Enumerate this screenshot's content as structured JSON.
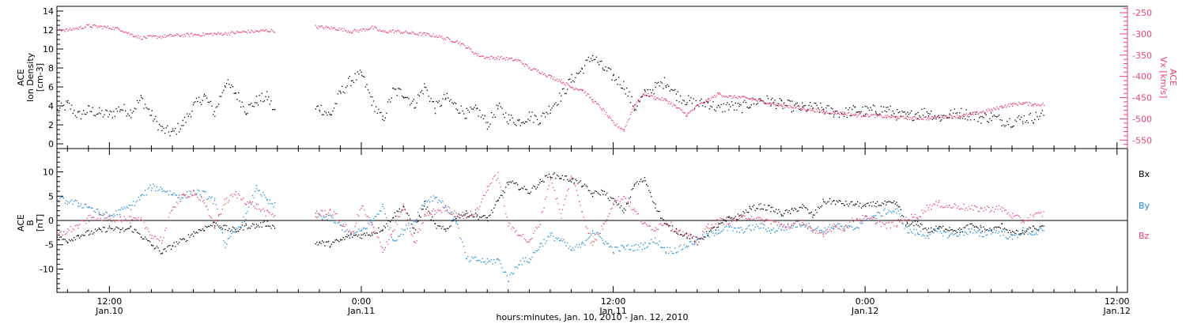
{
  "colors": {
    "axes": "#000000",
    "density": "#000000",
    "speed": "#e8466e",
    "bx": "#000000",
    "by": "#1f88d8",
    "bz": "#e8466e"
  },
  "chart_data": [
    {
      "type": "scatter",
      "panel": "top",
      "ylabel": "ACE Ion Density [cm^-3]",
      "ylabel_lines": [
        "ACE",
        "Ion Density",
        "[cm-3]"
      ],
      "y2label": "ACE Vx [km/s]",
      "y2label_lines": [
        "ACE",
        "Vx [km/s]"
      ],
      "ylim": [
        -0.5,
        14.5
      ],
      "y2lim": [
        -570,
        -235
      ],
      "yticks": [
        "0",
        "2",
        "4",
        "6",
        "8",
        "10",
        "12",
        "14"
      ],
      "y2ticks": [
        "-250",
        "-300",
        "-350",
        "-400",
        "-450",
        "-500",
        "-550"
      ],
      "xlim_hours": [
        9.5,
        60.5
      ],
      "gaps_hours": [
        [
          19.9,
          21.8
        ]
      ],
      "series": [
        {
          "name": "",
          "axis": "left",
          "color_key": "density",
          "x_hours": [
            9.5,
            10,
            10.5,
            11,
            11.5,
            12,
            12.5,
            13,
            13.5,
            14,
            14.5,
            15,
            15.5,
            16,
            16.5,
            17,
            17.5,
            18,
            18.5,
            19,
            19.5,
            19.9,
            21.8,
            22,
            22.5,
            23,
            23.5,
            24,
            24.5,
            25,
            25.5,
            26,
            26.5,
            27,
            27.5,
            28,
            28.5,
            29,
            29.5,
            30,
            30.5,
            31,
            31.5,
            32,
            32.5,
            33,
            33.5,
            34,
            34.5,
            35,
            35.5,
            36,
            36.5,
            37,
            37.5,
            38,
            38.5,
            39,
            39.5,
            40,
            40.5,
            41,
            41.5,
            42,
            42.5,
            43,
            43.5,
            44,
            44.5,
            45,
            45.5,
            46,
            46.5,
            47,
            47.5,
            48,
            48.5,
            49,
            49.5,
            50,
            50.5,
            51,
            51.5,
            52,
            52.5,
            53,
            53.5,
            54,
            54.5,
            55,
            55.5,
            56,
            56.5
          ],
          "values": [
            3.5,
            4.2,
            3.0,
            3.6,
            3.3,
            3.1,
            3.8,
            3.4,
            4.8,
            3.0,
            1.5,
            1.2,
            2.2,
            4.0,
            5.1,
            3.3,
            6.5,
            5.4,
            3.6,
            4.6,
            5.0,
            3.2,
            3.7,
            3.9,
            3.0,
            5.5,
            6.8,
            7.3,
            4.5,
            2.5,
            5.6,
            5.4,
            4.2,
            6.1,
            3.8,
            4.9,
            4.0,
            3.2,
            3.6,
            2.1,
            3.9,
            2.7,
            2.4,
            3.0,
            2.6,
            3.9,
            5.1,
            6.8,
            7.9,
            9.3,
            8.0,
            7.1,
            6.2,
            3.8,
            5.3,
            6.0,
            6.6,
            5.2,
            4.6,
            4.2,
            4.4,
            3.7,
            4.1,
            3.8,
            4.3,
            4.7,
            4.5,
            4.2,
            4.0,
            3.8,
            3.9,
            3.7,
            3.4,
            3.3,
            3.6,
            3.5,
            3.6,
            3.7,
            3.1,
            2.9,
            3.3,
            3.4,
            2.8,
            3.1,
            3.3,
            3.1,
            2.8,
            2.9,
            2.5,
            2.4,
            2.7,
            2.8,
            3.2
          ]
        },
        {
          "name": "",
          "axis": "right",
          "color_key": "speed",
          "x_hours": [
            9.5,
            10,
            10.5,
            11,
            11.5,
            12,
            12.5,
            13,
            13.5,
            14,
            14.5,
            15,
            15.5,
            16,
            16.5,
            17,
            17.5,
            18,
            18.5,
            19,
            19.5,
            19.9,
            21.8,
            22,
            22.5,
            23,
            23.5,
            24,
            24.5,
            25,
            25.5,
            26,
            26.5,
            27,
            27.5,
            28,
            28.5,
            29,
            29.5,
            30,
            30.5,
            31,
            31.5,
            32,
            32.5,
            33,
            33.5,
            34,
            34.5,
            35,
            35.5,
            36,
            36.5,
            37,
            37.5,
            38,
            38.5,
            39,
            39.5,
            40,
            40.5,
            41,
            41.5,
            42,
            42.5,
            43,
            43.5,
            44,
            44.5,
            45,
            45.5,
            46,
            46.5,
            47,
            47.5,
            48,
            48.5,
            49,
            49.5,
            50,
            50.5,
            51,
            51.5,
            52,
            52.5,
            53,
            53.5,
            54,
            54.5,
            55,
            55.5,
            56,
            56.5
          ],
          "values": [
            -288,
            -290,
            -285,
            -280,
            -282,
            -284,
            -288,
            -300,
            -308,
            -306,
            -305,
            -303,
            -302,
            -301,
            -300,
            -299,
            -298,
            -296,
            -294,
            -293,
            -291,
            -292,
            -282,
            -283,
            -285,
            -288,
            -293,
            -290,
            -284,
            -294,
            -292,
            -295,
            -298,
            -300,
            -303,
            -310,
            -316,
            -330,
            -348,
            -355,
            -355,
            -358,
            -362,
            -380,
            -388,
            -400,
            -410,
            -425,
            -430,
            -455,
            -478,
            -510,
            -525,
            -465,
            -440,
            -450,
            -455,
            -472,
            -490,
            -468,
            -455,
            -440,
            -447,
            -448,
            -452,
            -457,
            -463,
            -468,
            -470,
            -475,
            -478,
            -482,
            -484,
            -486,
            -490,
            -490,
            -492,
            -494,
            -495,
            -497,
            -497,
            -498,
            -494,
            -493,
            -492,
            -489,
            -483,
            -478,
            -470,
            -465,
            -462,
            -465,
            -465
          ]
        }
      ]
    },
    {
      "type": "scatter",
      "panel": "bottom",
      "ylabel": "ACE B [nT]",
      "ylabel_lines": [
        "ACE",
        "B",
        "[nT]"
      ],
      "ylim": [
        -14.8,
        14.8
      ],
      "yticks": [
        "10",
        "5",
        "0",
        "-5",
        "-10"
      ],
      "xlim_hours": [
        9.5,
        60.5
      ],
      "gaps_hours": [
        [
          19.9,
          21.8
        ]
      ],
      "legend_position": "right",
      "series": [
        {
          "name": "Bx",
          "color_key": "bx",
          "x_hours": [
            9.5,
            10,
            10.5,
            11,
            11.5,
            12,
            12.5,
            13,
            13.5,
            14,
            14.5,
            15,
            15.5,
            16,
            16.5,
            17,
            17.5,
            18,
            18.5,
            19,
            19.5,
            19.9,
            21.8,
            22,
            22.5,
            23,
            23.5,
            24,
            24.5,
            25,
            25.5,
            26,
            26.5,
            27,
            27.5,
            28,
            28.5,
            29,
            29.5,
            30,
            30.5,
            31,
            31.5,
            32,
            32.5,
            33,
            33.5,
            34,
            34.5,
            35,
            35.5,
            36,
            36.5,
            37,
            37.5,
            38,
            38.5,
            39,
            39.5,
            40,
            40.5,
            41,
            41.5,
            42,
            42.5,
            43,
            43.5,
            44,
            44.5,
            45,
            45.5,
            46,
            46.5,
            47,
            47.5,
            48,
            48.5,
            49,
            49.5,
            50,
            50.5,
            51,
            51.5,
            52,
            52.5,
            53,
            53.5,
            54,
            54.5,
            55,
            55.5,
            56,
            56.5
          ],
          "values": [
            -3.5,
            -4.0,
            -3.0,
            -2.5,
            -2.0,
            -1.5,
            -2.0,
            -1.5,
            -3.0,
            -5.0,
            -6.5,
            -5.0,
            -4.0,
            -2.5,
            -1.5,
            -0.5,
            -1.5,
            -2.0,
            -1.0,
            -1.0,
            -0.5,
            -1.5,
            -4.5,
            -4.5,
            -4.8,
            -4.0,
            -3.0,
            -3.0,
            -2.5,
            -1.5,
            1.0,
            3.0,
            -2.0,
            3.5,
            -1.0,
            -2.0,
            1.0,
            1.5,
            1.0,
            0.5,
            4.0,
            8.0,
            7.0,
            6.0,
            8.0,
            9.5,
            9.0,
            8.5,
            7.5,
            5.5,
            6.0,
            4.0,
            2.0,
            7.5,
            8.5,
            3.0,
            -1.0,
            -2.0,
            -3.0,
            -4.0,
            -2.5,
            -1.0,
            0.5,
            1.0,
            2.5,
            3.0,
            2.5,
            1.5,
            2.0,
            3.0,
            1.0,
            4.0,
            4.0,
            3.5,
            3.5,
            3.0,
            3.5,
            3.5,
            3.5,
            -1.0,
            -0.5,
            -2.0,
            -1.5,
            -1.5,
            -2.0,
            -1.0,
            -1.5,
            -2.0,
            -1.0,
            -2.5,
            -2.5,
            -1.5,
            -1.5
          ]
        },
        {
          "name": "By",
          "color_key": "by",
          "x_hours": [
            9.5,
            10,
            10.5,
            11,
            11.5,
            12,
            12.5,
            13,
            13.5,
            14,
            14.5,
            15,
            15.5,
            16,
            16.5,
            17,
            17.5,
            18,
            18.5,
            19,
            19.5,
            19.9,
            21.8,
            22,
            22.5,
            23,
            23.5,
            24,
            24.5,
            25,
            25.5,
            26,
            26.5,
            27,
            27.5,
            28,
            28.5,
            29,
            29.5,
            30,
            30.5,
            31,
            31.5,
            32,
            32.5,
            33,
            33.5,
            34,
            34.5,
            35,
            35.5,
            36,
            36.5,
            37,
            37.5,
            38,
            38.5,
            39,
            39.5,
            40,
            40.5,
            41,
            41.5,
            42,
            42.5,
            43,
            43.5,
            44,
            44.5,
            45,
            45.5,
            46,
            46.5,
            47,
            47.5,
            48,
            48.5,
            49,
            49.5,
            50,
            50.5,
            51,
            51.5,
            52,
            52.5,
            53,
            53.5,
            54,
            54.5,
            55,
            55.5,
            56,
            56.5
          ],
          "values": [
            4.5,
            4.0,
            3.5,
            3.0,
            1.5,
            1.0,
            2.0,
            3.0,
            5.0,
            7.0,
            6.5,
            5.5,
            5.0,
            6.0,
            5.5,
            4.0,
            -5.0,
            -2.0,
            1.0,
            7.0,
            4.0,
            3.0,
            1.5,
            1.0,
            0.5,
            -1.0,
            -3.0,
            -2.0,
            0.0,
            3.0,
            -4.0,
            -2.0,
            0.0,
            4.0,
            5.0,
            3.0,
            0.0,
            -8.0,
            -8.0,
            -8.5,
            -8.0,
            -12.0,
            -8.5,
            -8.0,
            -5.0,
            -3.0,
            -4.0,
            -6.0,
            -5.0,
            -2.0,
            -4.0,
            -6.0,
            -5.5,
            -5.5,
            -5.0,
            -4.0,
            -6.0,
            -6.0,
            -5.0,
            -4.0,
            -3.0,
            -2.0,
            -1.5,
            -2.0,
            -1.5,
            -1.0,
            -2.0,
            -1.5,
            -1.0,
            -0.5,
            -1.5,
            -2.0,
            -1.0,
            -1.5,
            -1.5,
            0.5,
            1.0,
            2.0,
            2.0,
            -2.0,
            -2.5,
            -3.0,
            -2.0,
            -3.0,
            -2.5,
            -2.0,
            -3.0,
            -2.0,
            -2.5,
            -3.5,
            -2.0,
            -2.5,
            -2.0
          ]
        },
        {
          "name": "Bz",
          "color_key": "bz",
          "x_hours": [
            9.5,
            10,
            10.5,
            11,
            11.5,
            12,
            12.5,
            13,
            13.5,
            14,
            14.5,
            15,
            15.5,
            16,
            16.5,
            17,
            17.5,
            18,
            18.5,
            19,
            19.5,
            19.9,
            21.8,
            22,
            22.5,
            23,
            23.5,
            24,
            24.5,
            25,
            25.5,
            26,
            26.5,
            27,
            27.5,
            28,
            28.5,
            29,
            29.5,
            30,
            30.5,
            31,
            31.5,
            32,
            32.5,
            33,
            33.5,
            34,
            34.5,
            35,
            35.5,
            36,
            36.5,
            37,
            37.5,
            38,
            38.5,
            39,
            39.5,
            40,
            40.5,
            41,
            41.5,
            42,
            42.5,
            43,
            43.5,
            44,
            44.5,
            45,
            45.5,
            46,
            46.5,
            47,
            47.5,
            48,
            48.5,
            49,
            49.5,
            50,
            50.5,
            51,
            51.5,
            52,
            52.5,
            53,
            53.5,
            54,
            54.5,
            55,
            55.5,
            56,
            56.5
          ],
          "values": [
            -3.0,
            -2.0,
            -1.0,
            0.5,
            0.8,
            0.5,
            0.5,
            0.2,
            0.0,
            -3.0,
            -4.0,
            3.0,
            5.0,
            6.0,
            3.5,
            -1.0,
            4.0,
            5.5,
            4.0,
            3.0,
            1.5,
            1.0,
            1.0,
            1.5,
            2.0,
            0.0,
            -3.0,
            3.0,
            -1.0,
            -6.0,
            -2.0,
            3.0,
            -5.0,
            1.0,
            2.0,
            2.5,
            1.5,
            1.0,
            2.0,
            7.0,
            9.5,
            -1.0,
            -2.5,
            -4.5,
            0.0,
            9.0,
            1.0,
            9.5,
            2.0,
            -5.0,
            -1.0,
            4.0,
            5.0,
            2.0,
            -1.0,
            -1.5,
            0.0,
            -2.0,
            -3.0,
            -4.5,
            -1.0,
            0.0,
            0.0,
            0.5,
            1.0,
            0.0,
            0.0,
            -1.0,
            -1.0,
            0.0,
            -2.5,
            -2.5,
            -1.0,
            -1.5,
            0.5,
            0.5,
            0.0,
            -1.0,
            -0.5,
            0.5,
            1.0,
            3.0,
            3.5,
            3.0,
            3.0,
            2.5,
            2.5,
            2.5,
            2.5,
            1.0,
            0.0,
            1.0,
            1.5
          ]
        }
      ],
      "zero_line": true
    }
  ],
  "x_axis": {
    "tick_labels": [
      {
        "hour": 12,
        "time": "12:00",
        "date": "Jan.10"
      },
      {
        "hour": 24,
        "time": "0:00",
        "date": "Jan.11"
      },
      {
        "hour": 36,
        "time": "12:00",
        "date": "Jan.11"
      },
      {
        "hour": 48,
        "time": "0:00",
        "date": "Jan.12"
      },
      {
        "hour": 60,
        "time": "12:00",
        "date": "Jan.12"
      }
    ],
    "xlabel": "hours:minutes, Jan. 10, 2010 - Jan. 12, 2010"
  },
  "legend": {
    "bx": "Bx",
    "by": "By",
    "bz": "Bz"
  }
}
